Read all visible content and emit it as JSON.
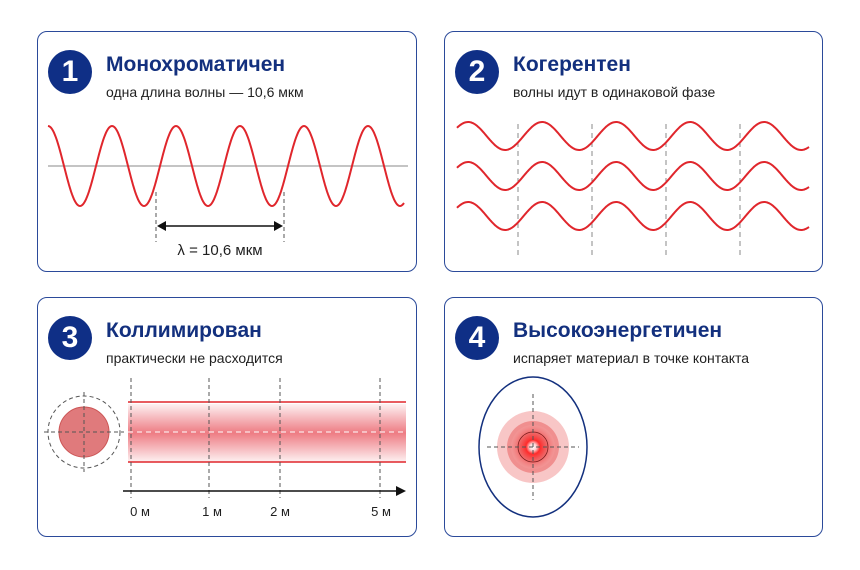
{
  "panels": [
    {
      "number": "1",
      "title": "Монохроматичен",
      "subtitle": "одна длина волны — 10,6 мкм",
      "wavelength_label": "λ = 10,6 мкм"
    },
    {
      "number": "2",
      "title": "Когерентен",
      "subtitle": "волны идут в одинаковой фазе"
    },
    {
      "number": "3",
      "title": "Коллимирован",
      "subtitle": "практически не расходится",
      "distance_labels": [
        "0 м",
        "1 м",
        "2 м",
        "5 м"
      ]
    },
    {
      "number": "4",
      "title": "Высокоэнергетичен",
      "subtitle": "испаряет материал в точке контакта"
    }
  ],
  "colors": {
    "accent_blue": "#0f2f86",
    "wave_red": "#e0262c",
    "beam_red": "#e8505a"
  }
}
